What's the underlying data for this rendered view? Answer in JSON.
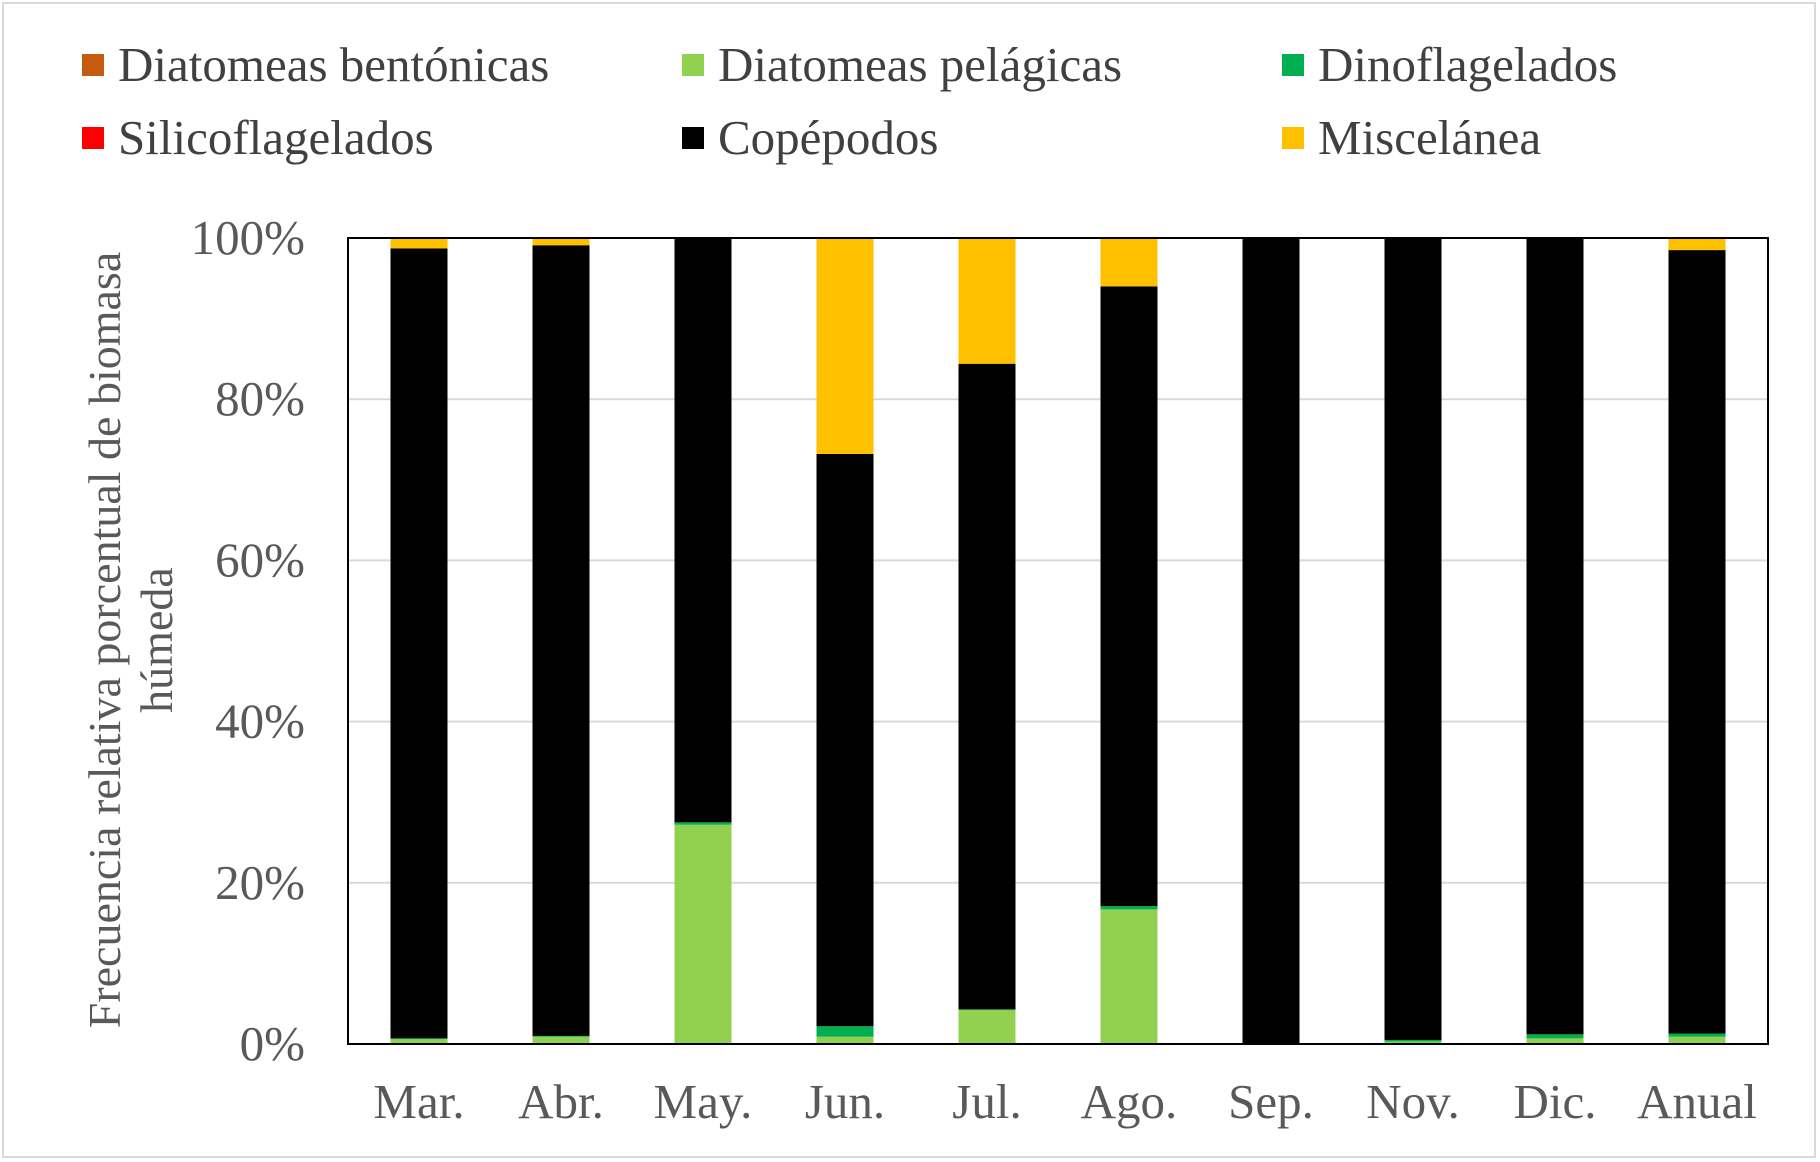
{
  "chart_data": {
    "type": "bar",
    "stacked": true,
    "percent": true,
    "categories": [
      "Mar.",
      "Abr.",
      "May.",
      "Jun.",
      "Jul.",
      "Ago.",
      "Sep.",
      "Nov.",
      "Dic.",
      "Anual"
    ],
    "series": [
      {
        "name": "Diatomeas bentónicas",
        "color": "#C55A11",
        "values": [
          0,
          0,
          0,
          0,
          0,
          0,
          0,
          0,
          0,
          0
        ]
      },
      {
        "name": "Diatomeas pelágicas",
        "color": "#92D050",
        "values": [
          0.6,
          0.9,
          27.2,
          0.9,
          4.2,
          16.7,
          0,
          0.3,
          0.7,
          0.9
        ]
      },
      {
        "name": "Dinoflagelados",
        "color": "#00B050",
        "values": [
          0.1,
          0.1,
          0.3,
          1.3,
          0.1,
          0.4,
          0,
          0.2,
          0.5,
          0.4
        ]
      },
      {
        "name": "Silicoflagelados",
        "color": "#FF0000",
        "values": [
          0,
          0,
          0,
          0,
          0,
          0,
          0,
          0,
          0,
          0
        ]
      },
      {
        "name": "Copépodos",
        "color": "#000000",
        "values": [
          98.0,
          98.1,
          72.5,
          71.0,
          80.1,
          76.9,
          100,
          99.5,
          98.8,
          97.2
        ]
      },
      {
        "name": "Miscelánea",
        "color": "#FFC000",
        "values": [
          1.3,
          0.9,
          0,
          26.8,
          15.6,
          6.0,
          0,
          0,
          0,
          1.5
        ]
      }
    ],
    "ylabel": "Frecuencia relativa porcentual de biomasa húmeda",
    "ylabel_lines": [
      "Frecuencia relativa porcentual de biomasa",
      "húmeda"
    ],
    "xlabel": "",
    "ylim": [
      0,
      100
    ],
    "yticks": [
      "0%",
      "20%",
      "40%",
      "60%",
      "80%",
      "100%"
    ],
    "grid": true,
    "legend_position": "top"
  }
}
